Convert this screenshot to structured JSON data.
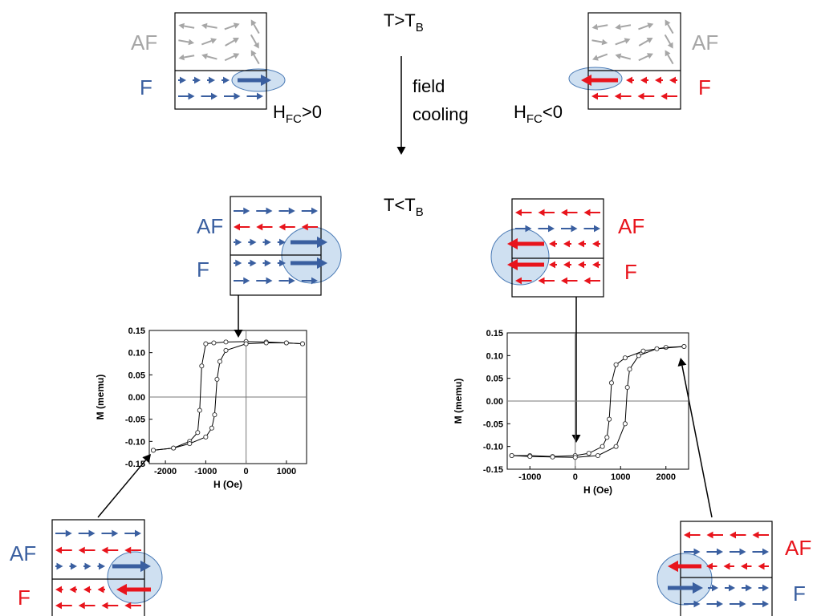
{
  "top_condition": {
    "main": "T>T",
    "sub": "B"
  },
  "process": [
    "field",
    "cooling"
  ],
  "bottom_condition": {
    "main": "T<T",
    "sub": "B"
  },
  "panels": {
    "top_left": {
      "layers": [
        "AF",
        "F"
      ],
      "field": {
        "main": "H",
        "sub": "FC",
        "tail": ">0"
      }
    },
    "top_right": {
      "layers": [
        "AF",
        "F"
      ],
      "field": {
        "main": "H",
        "sub": "FC",
        "tail": "<0"
      }
    },
    "middle_left": {
      "layers": [
        "AF",
        "F"
      ]
    },
    "middle_right": {
      "layers": [
        "AF",
        "F"
      ]
    },
    "bottom_left": {
      "layers": [
        "AF",
        "F"
      ]
    },
    "bottom_right": {
      "layers": [
        "AF",
        "F"
      ]
    }
  },
  "plots": [
    {
      "type": "scatter-line",
      "xlabel": "H (Oe)",
      "ylabel": "M (memu)",
      "xlim": [
        -2400,
        1500
      ],
      "ylim": [
        -0.15,
        0.15
      ],
      "xticks": [
        -2000,
        -1000,
        0,
        1000
      ],
      "yticks": [
        0.15,
        {
          "value": 0.1,
          "label": "0.10"
        },
        0.05,
        {
          "value": 0,
          "label": "0.00"
        },
        -0.05,
        {
          "value": -0.1,
          "label": "-0.10"
        },
        -0.15
      ],
      "series": [
        {
          "x": [
            1400,
            1000,
            500,
            0,
            -500,
            -800,
            -1000,
            -1100,
            -1150,
            -1200,
            -1400,
            -1800,
            -2300
          ],
          "values": [
            0.12,
            0.122,
            0.124,
            0.125,
            0.124,
            0.122,
            0.12,
            0.07,
            -0.03,
            -0.08,
            -0.1,
            -0.115,
            -0.12
          ]
        },
        {
          "x": [
            -2300,
            -1800,
            -1400,
            -1000,
            -850,
            -780,
            -720,
            -650,
            -500,
            0,
            500,
            1000,
            1400
          ],
          "values": [
            -0.12,
            -0.115,
            -0.105,
            -0.09,
            -0.07,
            -0.04,
            0.04,
            0.08,
            0.105,
            0.12,
            0.122,
            0.122,
            0.12
          ]
        }
      ]
    },
    {
      "type": "scatter-line",
      "xlabel": "H (Oe)",
      "ylabel": "M (memu)",
      "xlim": [
        -1500,
        2500
      ],
      "ylim": [
        -0.15,
        0.15
      ],
      "xticks": [
        -1000,
        0,
        1000,
        2000
      ],
      "yticks": [
        0.15,
        {
          "value": 0.1,
          "label": "0.10"
        },
        0.05,
        {
          "value": 0,
          "label": "0.00"
        },
        -0.05,
        {
          "value": -0.1,
          "label": "-0.10"
        },
        -0.15
      ],
      "series": [
        {
          "x": [
            2400,
            2000,
            1500,
            1100,
            900,
            800,
            750,
            700,
            600,
            300,
            0,
            -500,
            -1000,
            -1400
          ],
          "values": [
            0.12,
            0.118,
            0.11,
            0.095,
            0.08,
            0.04,
            -0.04,
            -0.08,
            -0.1,
            -0.115,
            -0.12,
            -0.122,
            -0.12,
            -0.12
          ]
        },
        {
          "x": [
            -1400,
            -1000,
            -500,
            0,
            500,
            900,
            1100,
            1150,
            1200,
            1400,
            1800,
            2400
          ],
          "values": [
            -0.12,
            -0.122,
            -0.123,
            -0.124,
            -0.12,
            -0.1,
            -0.05,
            0.03,
            0.07,
            0.1,
            0.115,
            0.12
          ]
        }
      ]
    }
  ]
}
